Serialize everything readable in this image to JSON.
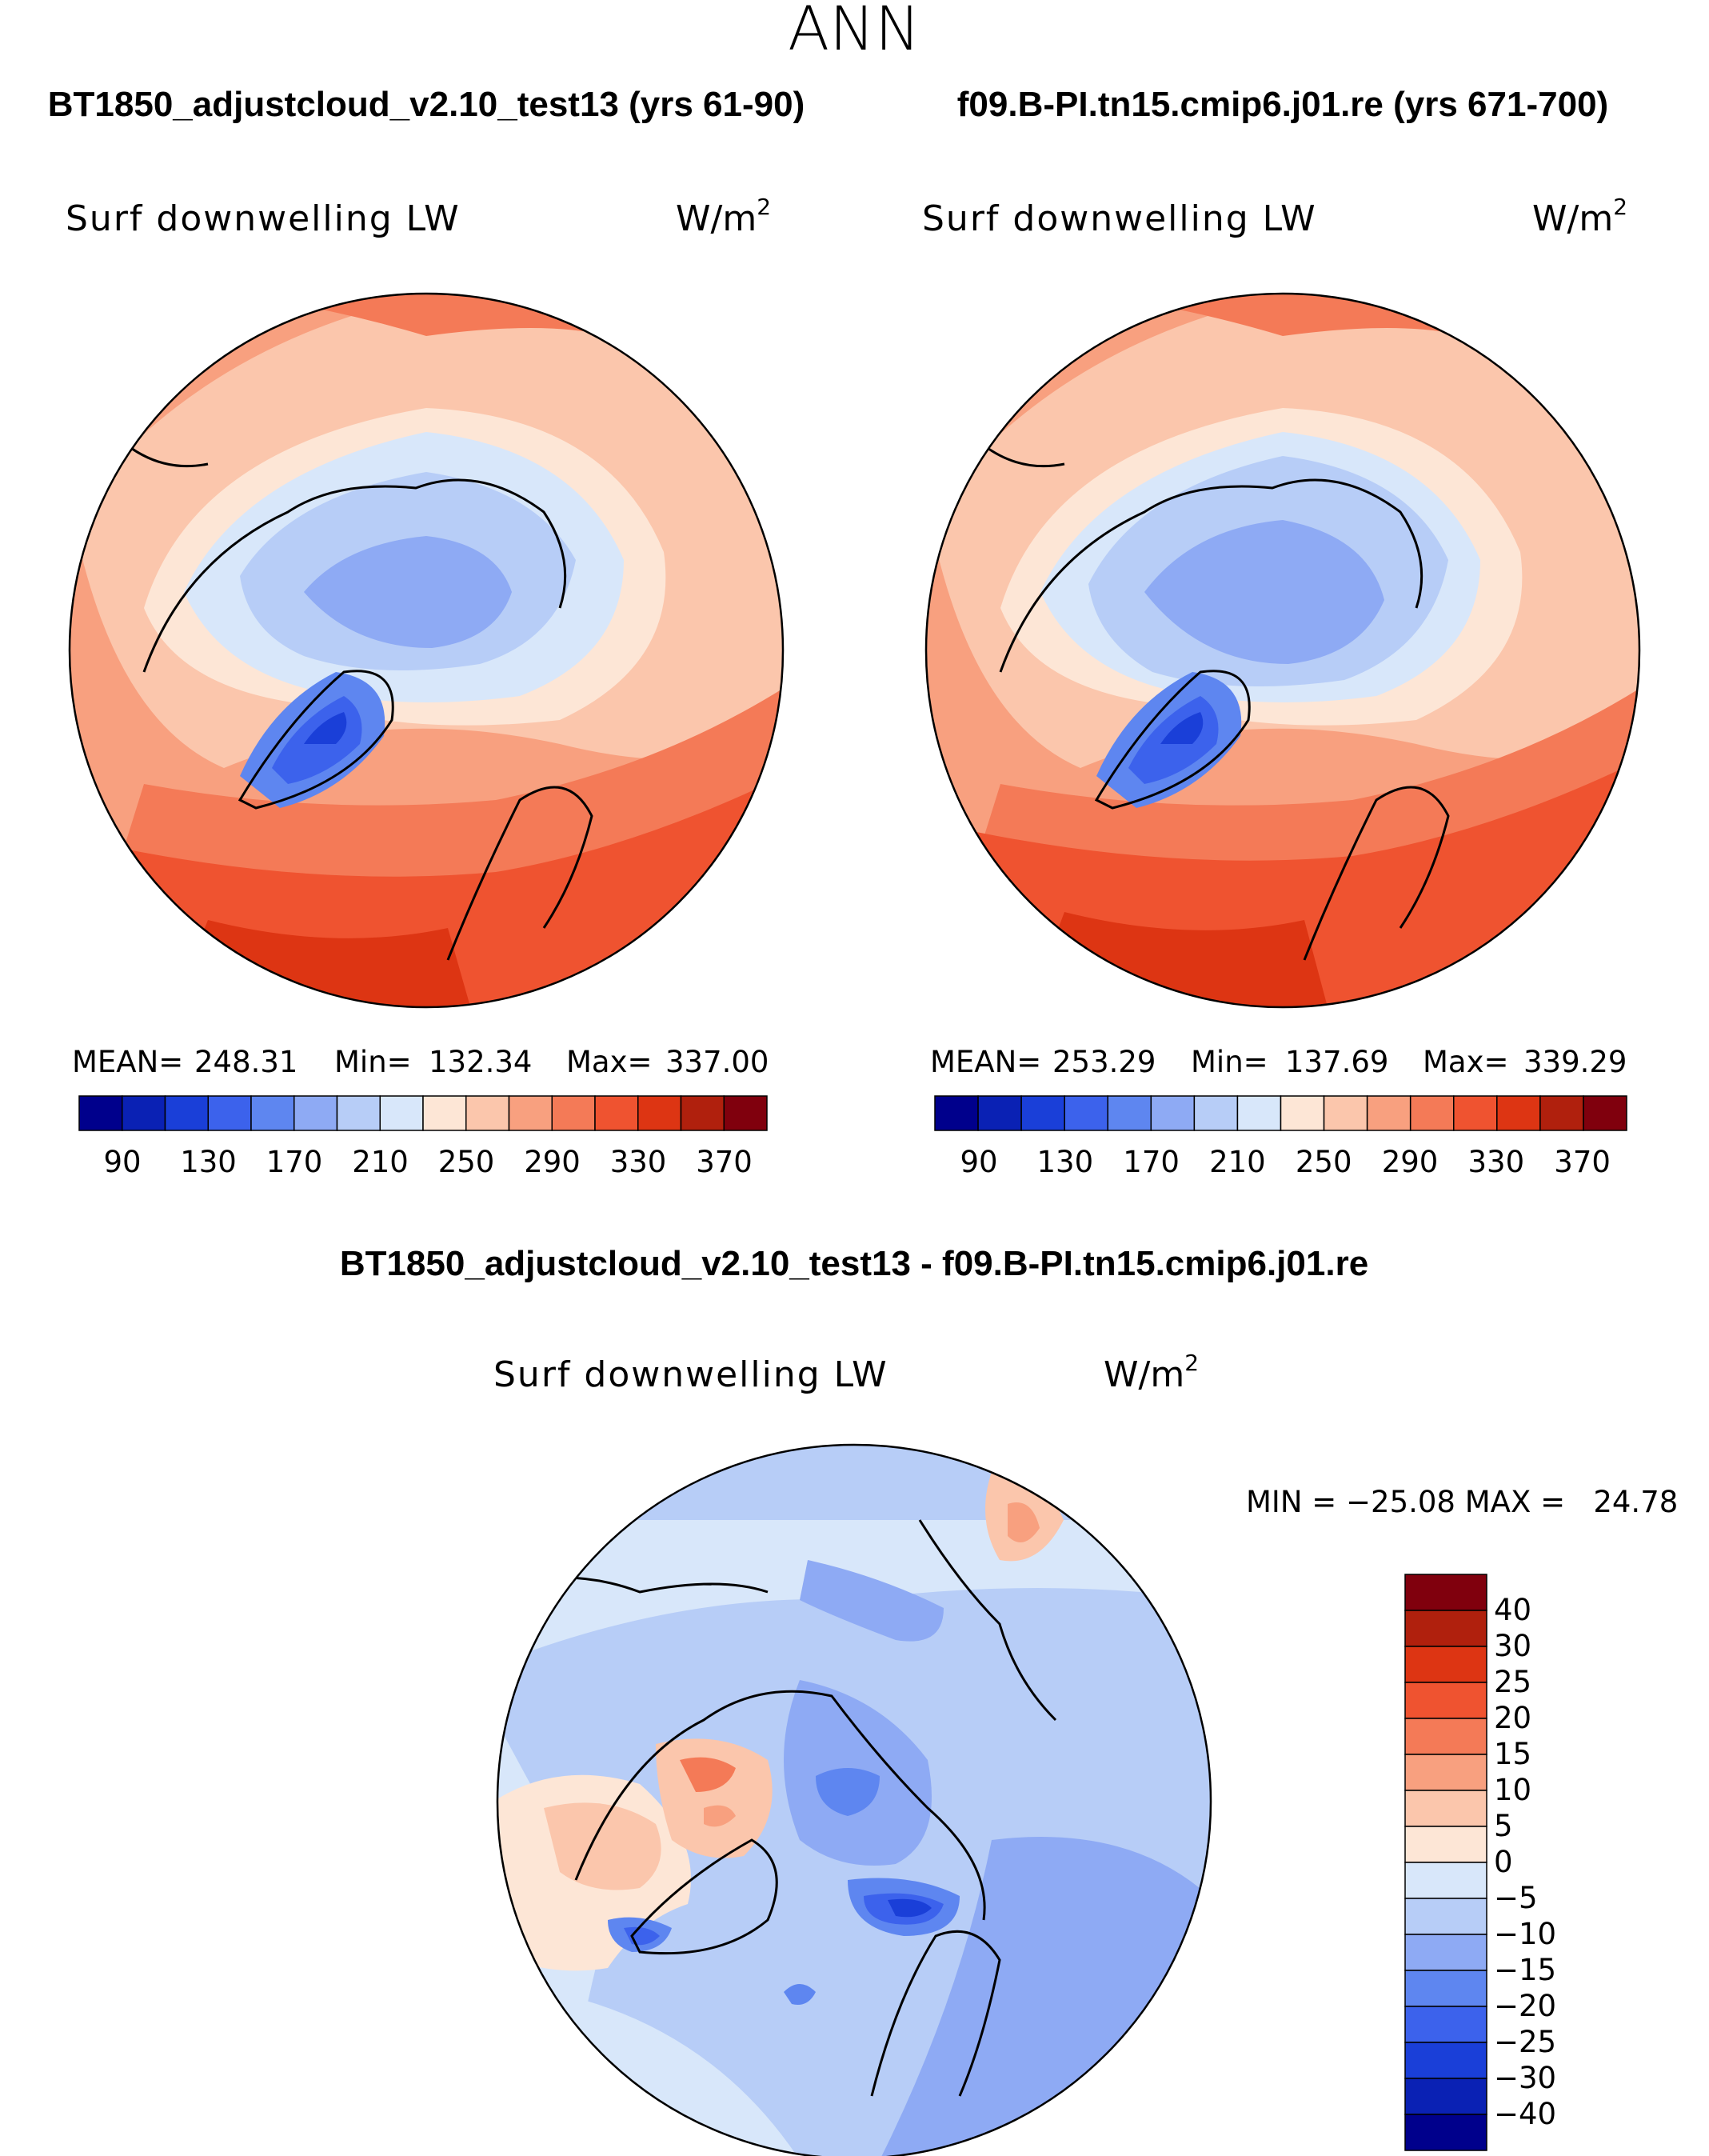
{
  "page_title": "ANN",
  "panels": [
    {
      "case_title": "BT1850_adjustcloud_v2.10_test13 (yrs 61-90)",
      "variable": "Surf downwelling LW",
      "units": "W/m",
      "units_sup": "2",
      "stats": {
        "mean_label": "MEAN=",
        "mean": "248.31",
        "min_label": "Min=",
        "min": "132.34",
        "max_label": "Max=",
        "max": "337.00"
      },
      "colorbar_ticks": [
        "90",
        "130",
        "170",
        "210",
        "250",
        "290",
        "330",
        "370"
      ]
    },
    {
      "case_title": "f09.B-PI.tn15.cmip6.j01.re (yrs 671-700)",
      "variable": "Surf downwelling LW",
      "units": "W/m",
      "units_sup": "2",
      "stats": {
        "mean_label": "MEAN=",
        "mean": "253.29",
        "min_label": "Min=",
        "min": "137.69",
        "max_label": "Max=",
        "max": "339.29"
      },
      "colorbar_ticks": [
        "90",
        "130",
        "170",
        "210",
        "250",
        "290",
        "330",
        "370"
      ]
    }
  ],
  "diff_panel": {
    "title": "BT1850_adjustcloud_v2.10_test13 - f09.B-PI.tn15.cmip6.j01.re",
    "variable": "Surf downwelling LW",
    "units": "W/m",
    "units_sup": "2",
    "minmax_text": "MIN = −25.08 MAX =   24.78",
    "colorbar_ticks": [
      "40",
      "30",
      "25",
      "20",
      "15",
      "10",
      "5",
      "0",
      "−5",
      "−10",
      "−15",
      "−20",
      "−25",
      "−30",
      "−40"
    ]
  },
  "colors": {
    "abs_scale": [
      "#00008c",
      "#0a21b4",
      "#1a3fd8",
      "#3c62ec",
      "#5e86f0",
      "#8eaaf4",
      "#b7cdf7",
      "#d8e7fa",
      "#fde6d6",
      "#fbc6ac",
      "#f8a07f",
      "#f47a57",
      "#ef5330",
      "#dd3513",
      "#b0200d",
      "#80000d"
    ],
    "diff_scale": [
      "#80000d",
      "#b0200d",
      "#dd3513",
      "#ef5330",
      "#f47a57",
      "#f8a07f",
      "#fbc6ac",
      "#fde6d6",
      "#d8e7fa",
      "#b7cdf7",
      "#8eaaf4",
      "#5e86f0",
      "#3c62ec",
      "#1a3fd8",
      "#0a21b4",
      "#00008c"
    ]
  }
}
